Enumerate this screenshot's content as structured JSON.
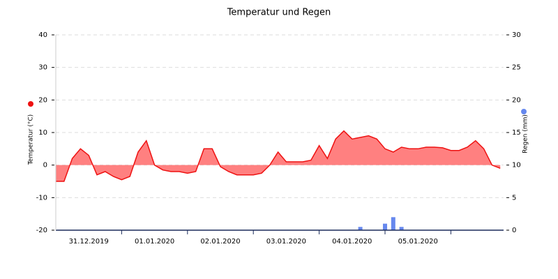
{
  "chart_data": {
    "type": "area-bar",
    "title": "Temperatur und Regen",
    "categories": [
      null,
      null,
      null,
      null,
      "31.12.2019",
      null,
      null,
      null,
      null,
      null,
      null,
      null,
      "01.01.2020",
      null,
      null,
      null,
      null,
      null,
      null,
      null,
      "02.01.2020",
      null,
      null,
      null,
      null,
      null,
      null,
      null,
      "03.01.2020",
      null,
      null,
      null,
      null,
      null,
      null,
      null,
      "04.01.2020",
      null,
      null,
      null,
      null,
      null,
      null,
      null,
      "05.01.2020",
      null,
      null,
      null,
      null,
      null,
      null,
      null,
      null,
      null,
      null
    ],
    "series": [
      {
        "name": "Temperatur (°C)",
        "color": "#ee1111",
        "fill": "#ff8080",
        "values": [
          -5,
          -5,
          2,
          5,
          3,
          -3,
          -2,
          -3.5,
          -4.5,
          -3.5,
          4,
          7.5,
          0,
          -1.5,
          -2,
          -2,
          -2.5,
          -2,
          5,
          5,
          -0.5,
          -2,
          -3,
          -3,
          -3,
          -2.5,
          0,
          4,
          1,
          1,
          1,
          1.5,
          6,
          2,
          8,
          10.5,
          8,
          8.5,
          9,
          8,
          5,
          4,
          5.5,
          5,
          5,
          5.5,
          5.5,
          5.3,
          4.5,
          4.5,
          5.5,
          7.5,
          5,
          0,
          -1
        ]
      },
      {
        "name": "Regen (mm)",
        "color": "#6688ee",
        "axis": "y2",
        "values": [
          0,
          0,
          0,
          0,
          0,
          0,
          0,
          0,
          0,
          0,
          0,
          0,
          0,
          0,
          0,
          0,
          0,
          0,
          0,
          0,
          0,
          0,
          0,
          0,
          0,
          0,
          0,
          0,
          0,
          0,
          0,
          0,
          0,
          0,
          0,
          0,
          0,
          0.5,
          0,
          0,
          1,
          2,
          0.5,
          0,
          0,
          0,
          0,
          0,
          0,
          0,
          0,
          0,
          0,
          0,
          0
        ]
      }
    ],
    "ylim": [
      -20,
      40
    ],
    "yticks": [
      -20,
      -10,
      0,
      10,
      20,
      30,
      40
    ],
    "y2lim": [
      0,
      30
    ],
    "y2ticks": [
      0,
      5,
      10,
      15,
      20,
      25,
      30
    ],
    "grid": true
  }
}
